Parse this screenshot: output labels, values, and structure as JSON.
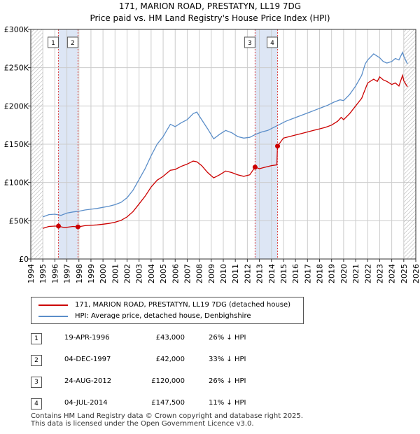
{
  "title": "171, MARION ROAD, PRESTATYN, LL19 7DG",
  "subtitle": "Price paid vs. HM Land Registry's House Price Index (HPI)",
  "chart_data": {
    "type": "line",
    "ylim": [
      0,
      300000
    ],
    "xlim": [
      1994,
      2026
    ],
    "yticks": [
      0,
      50000,
      100000,
      150000,
      200000,
      250000,
      300000
    ],
    "ytick_labels": [
      "£0",
      "£50K",
      "£100K",
      "£150K",
      "£200K",
      "£250K",
      "£300K"
    ],
    "xticks": [
      1994,
      1995,
      1996,
      1997,
      1998,
      1999,
      2000,
      2001,
      2002,
      2003,
      2004,
      2005,
      2006,
      2007,
      2008,
      2009,
      2010,
      2011,
      2012,
      2013,
      2014,
      2015,
      2016,
      2017,
      2018,
      2019,
      2020,
      2021,
      2022,
      2023,
      2024,
      2025,
      2026
    ],
    "xtick_labels": [
      "1994",
      "1995",
      "1996",
      "1997",
      "1998",
      "1999",
      "2000",
      "2001",
      "2002",
      "2003",
      "2004",
      "2005",
      "2006",
      "2007",
      "2008",
      "2009",
      "2010",
      "2011",
      "2012",
      "2013",
      "2014",
      "2015",
      "2016",
      "2017",
      "2018",
      "2019",
      "2020",
      "2021",
      "2022",
      "2023",
      "2024",
      "2025",
      "2026"
    ],
    "data_start": 1995.0,
    "data_end": 2025.3,
    "hatch_start": 2025.0,
    "colors": {
      "price": "#cc0000",
      "hpi": "#5b8ec9",
      "band": "#dde6f5",
      "grid": "#cccccc"
    },
    "series": [
      {
        "name": "171, MARION ROAD, PRESTATYN, LL19 7DG (detached house)",
        "key": "price",
        "points": [
          [
            1995.0,
            40000
          ],
          [
            1995.5,
            42500
          ],
          [
            1996.0,
            43000
          ],
          [
            1996.3,
            43000
          ],
          [
            1996.8,
            41000
          ],
          [
            1997.5,
            42500
          ],
          [
            1997.92,
            42000
          ],
          [
            1998.5,
            43500
          ],
          [
            1999.0,
            44000
          ],
          [
            1999.5,
            44500
          ],
          [
            2000.0,
            45500
          ],
          [
            2000.5,
            46500
          ],
          [
            2001.0,
            48000
          ],
          [
            2001.5,
            50500
          ],
          [
            2002.0,
            55000
          ],
          [
            2002.5,
            62000
          ],
          [
            2003.0,
            72000
          ],
          [
            2003.5,
            82000
          ],
          [
            2004.0,
            94000
          ],
          [
            2004.5,
            103000
          ],
          [
            2005.0,
            108000
          ],
          [
            2005.3,
            112000
          ],
          [
            2005.6,
            116000
          ],
          [
            2006.0,
            117000
          ],
          [
            2006.5,
            121000
          ],
          [
            2007.0,
            124000
          ],
          [
            2007.5,
            128000
          ],
          [
            2007.8,
            127000
          ],
          [
            2008.2,
            122000
          ],
          [
            2008.7,
            113000
          ],
          [
            2009.2,
            106000
          ],
          [
            2009.7,
            110000
          ],
          [
            2010.2,
            115000
          ],
          [
            2010.7,
            113000
          ],
          [
            2011.2,
            110000
          ],
          [
            2011.7,
            108000
          ],
          [
            2012.2,
            110000
          ],
          [
            2012.64,
            120000
          ],
          [
            2013.0,
            118000
          ],
          [
            2013.5,
            120000
          ],
          [
            2014.0,
            122000
          ],
          [
            2014.45,
            123000
          ],
          [
            2014.51,
            147500
          ],
          [
            2015.0,
            158000
          ],
          [
            2015.5,
            160000
          ],
          [
            2016.0,
            162000
          ],
          [
            2016.5,
            164000
          ],
          [
            2017.0,
            166000
          ],
          [
            2017.5,
            168000
          ],
          [
            2018.0,
            170000
          ],
          [
            2018.5,
            172000
          ],
          [
            2019.0,
            175000
          ],
          [
            2019.5,
            180000
          ],
          [
            2019.8,
            185000
          ],
          [
            2020.0,
            182000
          ],
          [
            2020.5,
            190000
          ],
          [
            2021.0,
            200000
          ],
          [
            2021.5,
            210000
          ],
          [
            2021.8,
            222000
          ],
          [
            2022.0,
            230000
          ],
          [
            2022.5,
            235000
          ],
          [
            2022.8,
            232000
          ],
          [
            2023.0,
            238000
          ],
          [
            2023.3,
            234000
          ],
          [
            2023.6,
            232000
          ],
          [
            2024.0,
            228000
          ],
          [
            2024.3,
            230000
          ],
          [
            2024.6,
            226000
          ],
          [
            2024.9,
            240000
          ],
          [
            2025.0,
            233000
          ],
          [
            2025.3,
            225000
          ]
        ]
      },
      {
        "name": "HPI: Average price, detached house, Denbighshire",
        "key": "hpi",
        "points": [
          [
            1995.0,
            55000
          ],
          [
            1995.5,
            58000
          ],
          [
            1996.0,
            58500
          ],
          [
            1996.5,
            57000
          ],
          [
            1997.0,
            60000
          ],
          [
            1997.5,
            61500
          ],
          [
            1998.0,
            62500
          ],
          [
            1998.5,
            64000
          ],
          [
            1999.0,
            65000
          ],
          [
            1999.5,
            66000
          ],
          [
            2000.0,
            67500
          ],
          [
            2000.5,
            69000
          ],
          [
            2001.0,
            71000
          ],
          [
            2001.5,
            74000
          ],
          [
            2002.0,
            80000
          ],
          [
            2002.5,
            90000
          ],
          [
            2003.0,
            104000
          ],
          [
            2003.5,
            118000
          ],
          [
            2004.0,
            135000
          ],
          [
            2004.5,
            150000
          ],
          [
            2005.0,
            160000
          ],
          [
            2005.3,
            168000
          ],
          [
            2005.6,
            176000
          ],
          [
            2006.0,
            173000
          ],
          [
            2006.5,
            178000
          ],
          [
            2007.0,
            182000
          ],
          [
            2007.5,
            190000
          ],
          [
            2007.8,
            192000
          ],
          [
            2008.2,
            182000
          ],
          [
            2008.7,
            170000
          ],
          [
            2009.2,
            157000
          ],
          [
            2009.7,
            163000
          ],
          [
            2010.2,
            168000
          ],
          [
            2010.7,
            165000
          ],
          [
            2011.2,
            160000
          ],
          [
            2011.7,
            158000
          ],
          [
            2012.2,
            159000
          ],
          [
            2012.7,
            163000
          ],
          [
            2013.2,
            166000
          ],
          [
            2013.7,
            168000
          ],
          [
            2014.2,
            172000
          ],
          [
            2014.7,
            176000
          ],
          [
            2015.2,
            180000
          ],
          [
            2015.7,
            183000
          ],
          [
            2016.2,
            186000
          ],
          [
            2016.7,
            189000
          ],
          [
            2017.2,
            192000
          ],
          [
            2017.7,
            195000
          ],
          [
            2018.2,
            198000
          ],
          [
            2018.7,
            201000
          ],
          [
            2019.2,
            205000
          ],
          [
            2019.7,
            208000
          ],
          [
            2020.0,
            207000
          ],
          [
            2020.5,
            215000
          ],
          [
            2021.0,
            226000
          ],
          [
            2021.5,
            240000
          ],
          [
            2021.8,
            255000
          ],
          [
            2022.0,
            260000
          ],
          [
            2022.5,
            268000
          ],
          [
            2022.8,
            265000
          ],
          [
            2023.0,
            263000
          ],
          [
            2023.3,
            258000
          ],
          [
            2023.6,
            256000
          ],
          [
            2024.0,
            258000
          ],
          [
            2024.3,
            262000
          ],
          [
            2024.6,
            260000
          ],
          [
            2024.9,
            270000
          ],
          [
            2025.0,
            265000
          ],
          [
            2025.3,
            255000
          ]
        ]
      }
    ],
    "sales": [
      {
        "n": "1",
        "x": 1996.3,
        "y": 43000
      },
      {
        "n": "2",
        "x": 1997.92,
        "y": 42000
      },
      {
        "n": "3",
        "x": 2012.64,
        "y": 120000
      },
      {
        "n": "4",
        "x": 2014.51,
        "y": 147500
      }
    ],
    "bands": [
      [
        1996.3,
        1997.92
      ],
      [
        2012.64,
        2014.51
      ]
    ]
  },
  "legend": {
    "price_label": "171, MARION ROAD, PRESTATYN, LL19 7DG (detached house)",
    "hpi_label": "HPI: Average price, detached house, Denbighshire"
  },
  "sales_table": [
    {
      "num": "1",
      "date": "19-APR-1996",
      "price": "£43,000",
      "hpi": "26% ↓ HPI"
    },
    {
      "num": "2",
      "date": "04-DEC-1997",
      "price": "£42,000",
      "hpi": "33% ↓ HPI"
    },
    {
      "num": "3",
      "date": "24-AUG-2012",
      "price": "£120,000",
      "hpi": "26% ↓ HPI"
    },
    {
      "num": "4",
      "date": "04-JUL-2014",
      "price": "£147,500",
      "hpi": "11% ↓ HPI"
    }
  ],
  "footer": {
    "line1": "Contains HM Land Registry data © Crown copyright and database right 2025.",
    "line2": "This data is licensed under the Open Government Licence v3.0."
  }
}
